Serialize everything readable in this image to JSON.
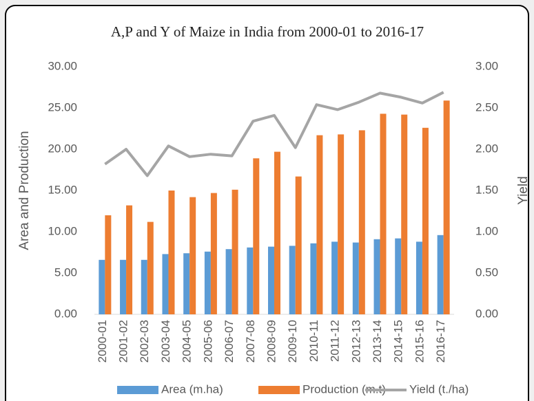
{
  "chart_data": {
    "type": "bar_line",
    "title": "A,P and Y of Maize  in India from 2000-01 to 2016-17",
    "ylabel": "Area and Production",
    "y2label": "Yield",
    "legend": "bottom",
    "categories": [
      "2000-01",
      "2001-02",
      "2002-03",
      "2003-04",
      "2004-05",
      "2005-06",
      "2006-07",
      "2007-08",
      "2008-09",
      "2009-10",
      "2010-11",
      "2011-12",
      "2012-13",
      "2013-14",
      "2014-15",
      "2015-16",
      "2016-17"
    ],
    "series": [
      {
        "name": "Area (m.ha)",
        "color": "#5b9bd5",
        "kind": "bar",
        "values": [
          6.6,
          6.6,
          6.6,
          7.3,
          7.4,
          7.6,
          7.9,
          8.1,
          8.2,
          8.3,
          8.6,
          8.8,
          8.7,
          9.1,
          9.2,
          8.8,
          9.6
        ]
      },
      {
        "name": "Production  (m.t)",
        "color": "#ed7d31",
        "kind": "bar",
        "values": [
          12.0,
          13.2,
          11.2,
          15.0,
          14.2,
          14.7,
          15.1,
          18.9,
          19.7,
          16.7,
          21.7,
          21.8,
          22.3,
          24.3,
          24.2,
          22.6,
          25.9
        ]
      },
      {
        "name": "Yield (t./ha)",
        "color": "#a5a5a5",
        "kind": "line",
        "axis": "y2",
        "values": [
          1.82,
          2.0,
          1.68,
          2.04,
          1.91,
          1.94,
          1.92,
          2.34,
          2.41,
          2.02,
          2.54,
          2.48,
          2.57,
          2.68,
          2.63,
          2.56,
          2.69
        ]
      }
    ],
    "ylim": [
      0,
      30
    ],
    "yticks": [
      {
        "value": 0,
        "label": "0.00"
      },
      {
        "value": 5,
        "label": "5.00"
      },
      {
        "value": 10,
        "label": "10.00"
      },
      {
        "value": 15,
        "label": "15.00"
      },
      {
        "value": 20,
        "label": "20.00"
      },
      {
        "value": 25,
        "label": "25.00"
      },
      {
        "value": 30,
        "label": "30.00"
      }
    ],
    "y2lim": [
      0,
      3
    ],
    "y2ticks": [
      {
        "value": 0,
        "label": "0.00"
      },
      {
        "value": 0.5,
        "label": "0.50"
      },
      {
        "value": 1,
        "label": "1.00"
      },
      {
        "value": 1.5,
        "label": "1.50"
      },
      {
        "value": 2,
        "label": "2.00"
      },
      {
        "value": 2.5,
        "label": "2.50"
      },
      {
        "value": 3,
        "label": "3.00"
      }
    ]
  }
}
